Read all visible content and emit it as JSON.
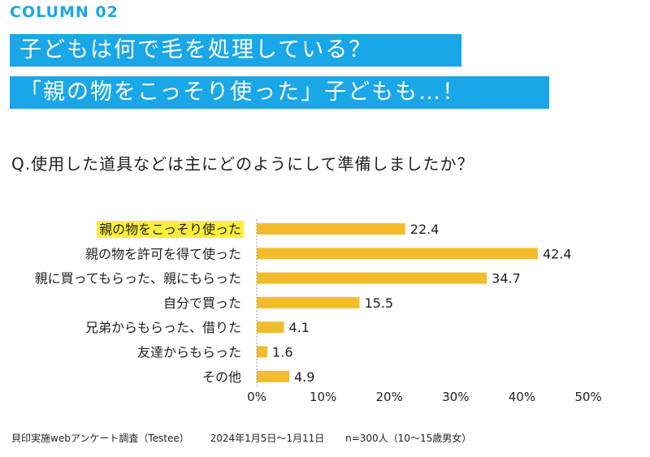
{
  "header": {
    "column_label": "COLUMN 02",
    "title_line1": "子どもは何で毛を処理している？",
    "title_line2": "「親の物をこっそり使った」子どもも…！"
  },
  "question": "Q.使用した道具などは主にどのようにして準備しましたか？",
  "chart_data": {
    "type": "bar",
    "orientation": "horizontal",
    "categories": [
      "親の物をこっそり使った",
      "親の物を許可を得て使った",
      "親に買ってもらった、親にもらった",
      "自分で買った",
      "兄弟からもらった、借りた",
      "友達からもらった",
      "その他"
    ],
    "values": [
      22.4,
      42.4,
      34.7,
      15.5,
      4.1,
      1.6,
      4.9
    ],
    "value_labels": [
      "22.4",
      "42.4",
      "34.7",
      "15.5",
      "4.1",
      "1.6",
      "4.9"
    ],
    "highlighted_category": "親の物をこっそり使った",
    "xlim": [
      0,
      50
    ],
    "x_ticks": [
      "0%",
      "10%",
      "20%",
      "30%",
      "40%",
      "50%"
    ],
    "grid": false,
    "colors": {
      "bar": "#f2bd2c",
      "highlight": "#fbef3c",
      "accent": "#1aa7e8"
    }
  },
  "footer": {
    "source": "貝印実施webアンケート調査（Testee）",
    "date": "2024年1月5日〜1月11日",
    "sample": "n=300人（10〜15歳男女）"
  }
}
